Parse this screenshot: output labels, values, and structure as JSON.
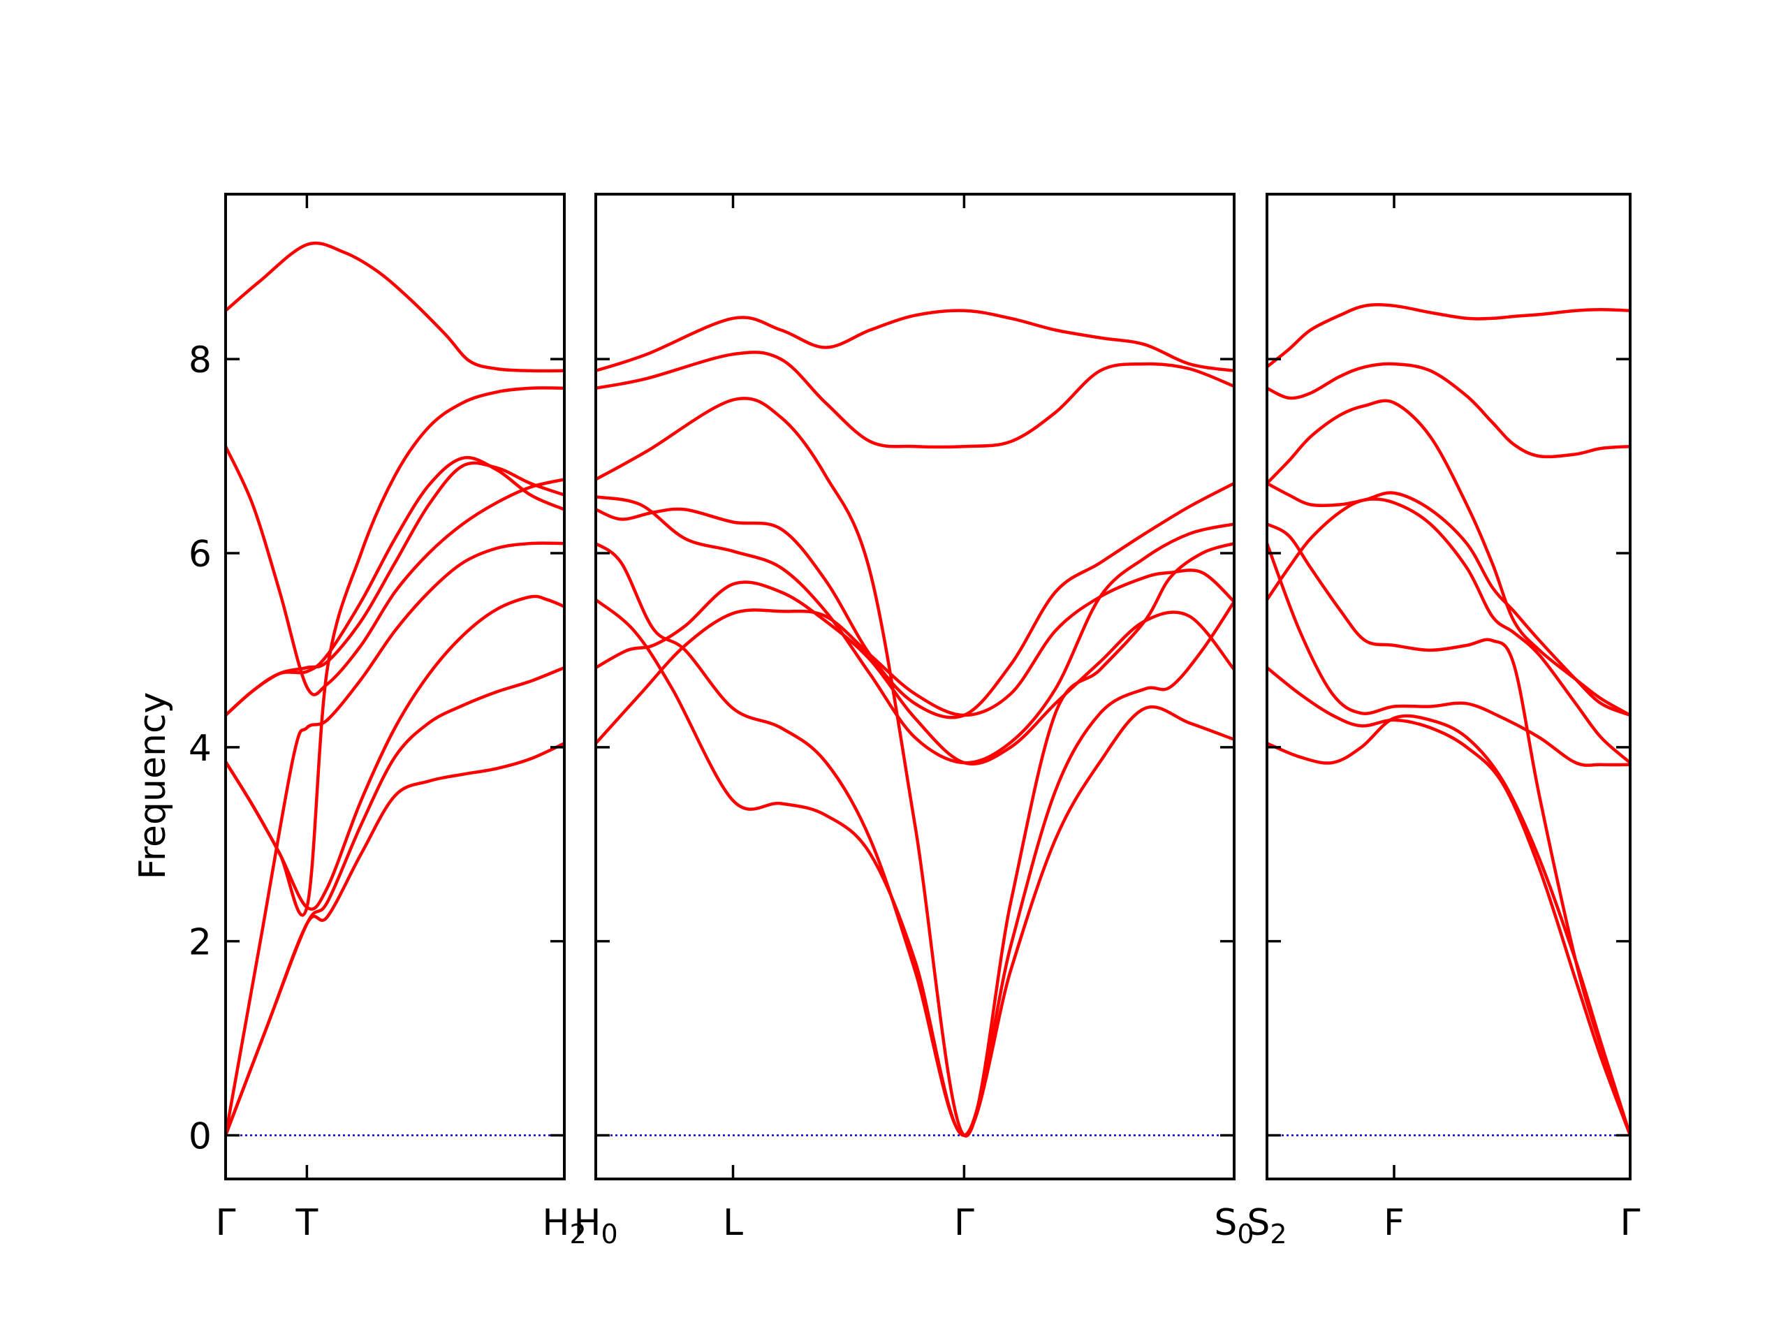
{
  "chart_data": {
    "type": "line",
    "title": "",
    "xlabel": "",
    "ylabel": "Frequency",
    "ylim": [
      -0.45,
      9.7
    ],
    "yticks": [
      0,
      2,
      4,
      6,
      8
    ],
    "grid": false,
    "legend": "none",
    "colors": {
      "bands": "#ff0000",
      "zero_line": "#0000cc",
      "frame": "#000000"
    },
    "panels": [
      {
        "id": "gamma-t-h2",
        "x_range": [
          0,
          1
        ],
        "ticks": [
          {
            "x": 0,
            "label": "Γ"
          },
          {
            "x": 0.24,
            "label": "T"
          },
          {
            "x": 1,
            "label": "H",
            "sub": "2"
          }
        ],
        "series": [
          {
            "x": [
              0,
              0.12,
              0.24,
              0.3,
              0.4,
              0.5,
              0.6,
              0.7,
              0.8,
              0.9,
              1
            ],
            "y": [
              0,
              1.1,
              2.18,
              2.25,
              2.9,
              3.5,
              3.65,
              3.72,
              3.78,
              3.88,
              4.04
            ]
          },
          {
            "x": [
              0,
              0.12,
              0.24,
              0.3,
              0.4,
              0.5,
              0.6,
              0.7,
              0.8,
              0.9,
              1
            ],
            "y": [
              0,
              1.1,
              2.18,
              2.4,
              3.2,
              3.9,
              4.25,
              4.43,
              4.57,
              4.68,
              4.82
            ]
          },
          {
            "x": [
              0,
              0.08,
              0.16,
              0.24,
              0.3,
              0.4,
              0.5,
              0.6,
              0.7,
              0.8,
              0.9,
              0.95,
              1
            ],
            "y": [
              3.85,
              3.4,
              2.9,
              2.35,
              2.55,
              3.45,
              4.2,
              4.75,
              5.15,
              5.42,
              5.55,
              5.52,
              5.45
            ]
          },
          {
            "x": [
              0,
              0.1,
              0.2,
              0.24,
              0.3,
              0.4,
              0.5,
              0.6,
              0.7,
              0.8,
              0.9,
              1
            ],
            "y": [
              0,
              1.95,
              3.9,
              4.2,
              4.28,
              4.7,
              5.2,
              5.6,
              5.9,
              6.05,
              6.1,
              6.1
            ]
          },
          {
            "x": [
              0,
              0.08,
              0.16,
              0.24,
              0.3,
              0.4,
              0.5,
              0.6,
              0.7,
              0.8,
              0.9,
              1
            ],
            "y": [
              7.1,
              6.5,
              5.6,
              4.62,
              4.65,
              5.05,
              5.6,
              6.0,
              6.3,
              6.52,
              6.68,
              6.76
            ]
          },
          {
            "x": [
              0,
              0.08,
              0.16,
              0.24,
              0.3,
              0.4,
              0.5,
              0.6,
              0.7,
              0.8,
              0.9,
              1
            ],
            "y": [
              4.33,
              4.58,
              4.76,
              4.82,
              4.88,
              5.3,
              5.9,
              6.5,
              6.9,
              6.88,
              6.72,
              6.6
            ]
          },
          {
            "x": [
              0,
              0.08,
              0.16,
              0.24,
              0.3,
              0.4,
              0.5,
              0.6,
              0.7,
              0.8,
              0.9,
              1
            ],
            "y": [
              4.33,
              4.58,
              4.76,
              4.78,
              4.95,
              5.5,
              6.15,
              6.7,
              6.98,
              6.86,
              6.6,
              6.45
            ]
          },
          {
            "x": [
              0,
              0.08,
              0.16,
              0.24,
              0.3,
              0.4,
              0.5,
              0.6,
              0.7,
              0.8,
              0.9,
              1
            ],
            "y": [
              3.85,
              3.4,
              2.9,
              2.35,
              4.8,
              6.0,
              6.8,
              7.3,
              7.55,
              7.66,
              7.7,
              7.7
            ]
          },
          {
            "x": [
              0,
              0.1,
              0.24,
              0.35,
              0.45,
              0.55,
              0.65,
              0.72,
              0.8,
              0.9,
              1
            ],
            "y": [
              8.5,
              8.8,
              9.18,
              9.1,
              8.9,
              8.6,
              8.25,
              7.98,
              7.9,
              7.88,
              7.88
            ]
          }
        ]
      },
      {
        "id": "h0-l-gamma-s0",
        "x_range": [
          0,
          1
        ],
        "ticks": [
          {
            "x": 0,
            "label": "H",
            "sub": "0"
          },
          {
            "x": 0.215,
            "label": "L"
          },
          {
            "x": 0.577,
            "label": "Γ"
          },
          {
            "x": 1,
            "label": "S",
            "sub": "0"
          }
        ],
        "series": [
          {
            "x": [
              0,
              0.07,
              0.14,
              0.215,
              0.29,
              0.36,
              0.43,
              0.5,
              0.577,
              0.65,
              0.72,
              0.79,
              0.86,
              0.9,
              0.95,
              1
            ],
            "y": [
              4.04,
              4.55,
              5.05,
              5.38,
              5.4,
              5.35,
              4.95,
              4.55,
              4.33,
              4.55,
              5.2,
              5.55,
              5.75,
              5.8,
              5.8,
              5.5
            ]
          },
          {
            "x": [
              0,
              0.05,
              0.09,
              0.14,
              0.215,
              0.29,
              0.36,
              0.43,
              0.5,
              0.577,
              0.65,
              0.72,
              0.79,
              0.86,
              0.93,
              1
            ],
            "y": [
              4.82,
              5.0,
              5.05,
              5.25,
              5.68,
              5.6,
              5.3,
              4.9,
              4.3,
              3.84,
              4.0,
              4.45,
              4.88,
              5.3,
              5.35,
              4.8
            ]
          },
          {
            "x": [
              0,
              0.07,
              0.14,
              0.215,
              0.29,
              0.36,
              0.43,
              0.5,
              0.577,
              0.65,
              0.72,
              0.79,
              0.86,
              0.93,
              1
            ],
            "y": [
              6.58,
              6.5,
              6.15,
              6.02,
              5.85,
              5.4,
              4.75,
              4.1,
              3.84,
              4.05,
              4.6,
              5.55,
              5.95,
              6.2,
              6.3
            ]
          },
          {
            "x": [
              0,
              0.04,
              0.09,
              0.14,
              0.215,
              0.29,
              0.36,
              0.43,
              0.5,
              0.577,
              0.65,
              0.72,
              0.79,
              0.86,
              0.93,
              1
            ],
            "y": [
              6.45,
              6.35,
              6.42,
              6.45,
              6.32,
              6.25,
              5.72,
              4.95,
              4.45,
              4.33,
              4.85,
              5.6,
              5.9,
              6.2,
              6.48,
              6.72
            ]
          },
          {
            "x": [
              0,
              0.04,
              0.09,
              0.14,
              0.215,
              0.29,
              0.36,
              0.43,
              0.5,
              0.577,
              0.65,
              0.72,
              0.79,
              0.86,
              0.93,
              1
            ],
            "y": [
              6.1,
              5.9,
              5.22,
              5.0,
              4.4,
              4.2,
              3.85,
              3.05,
              1.7,
              0,
              1.7,
              3.05,
              3.85,
              4.4,
              4.25,
              4.08
            ]
          },
          {
            "x": [
              0,
              0.06,
              0.12,
              0.215,
              0.29,
              0.36,
              0.43,
              0.5,
              0.577,
              0.65,
              0.72,
              0.79,
              0.86,
              0.9,
              0.95,
              1
            ],
            "y": [
              5.52,
              5.2,
              4.6,
              3.45,
              3.42,
              3.3,
              2.9,
              1.8,
              0,
              1.95,
              3.55,
              4.35,
              4.6,
              4.62,
              5.0,
              5.5
            ]
          },
          {
            "x": [
              0,
              0.08,
              0.215,
              0.29,
              0.36,
              0.43,
              0.5,
              0.577,
              0.65,
              0.72,
              0.79,
              0.86,
              0.9,
              0.95,
              1
            ],
            "y": [
              6.76,
              7.05,
              7.58,
              7.4,
              6.8,
              5.8,
              3.2,
              0,
              2.4,
              4.35,
              4.8,
              5.3,
              5.75,
              6.0,
              6.1
            ]
          },
          {
            "x": [
              0,
              0.08,
              0.215,
              0.29,
              0.36,
              0.43,
              0.5,
              0.577,
              0.65,
              0.72,
              0.79,
              0.86,
              0.93,
              1
            ],
            "y": [
              7.7,
              7.8,
              8.05,
              8.0,
              7.55,
              7.15,
              7.1,
              7.1,
              7.15,
              7.45,
              7.88,
              7.95,
              7.9,
              7.72
            ]
          },
          {
            "x": [
              0,
              0.08,
              0.215,
              0.29,
              0.36,
              0.43,
              0.5,
              0.577,
              0.65,
              0.72,
              0.79,
              0.86,
              0.93,
              1
            ],
            "y": [
              7.88,
              8.05,
              8.42,
              8.3,
              8.12,
              8.3,
              8.45,
              8.5,
              8.42,
              8.3,
              8.22,
              8.15,
              7.95,
              7.88
            ]
          }
        ]
      },
      {
        "id": "s2-f-gamma",
        "x_range": [
          0,
          1
        ],
        "ticks": [
          {
            "x": 0,
            "label": "S",
            "sub": "2"
          },
          {
            "x": 0.35,
            "label": "F"
          },
          {
            "x": 1,
            "label": "Γ"
          }
        ],
        "series": [
          {
            "x": [
              0,
              0.09,
              0.18,
              0.26,
              0.35,
              0.45,
              0.55,
              0.65,
              0.75,
              0.85,
              0.92,
              1
            ],
            "y": [
              4.04,
              3.9,
              3.84,
              4.0,
              4.3,
              4.28,
              4.1,
              3.65,
              2.85,
              1.8,
              0.95,
              0
            ]
          },
          {
            "x": [
              0,
              0.09,
              0.18,
              0.26,
              0.35,
              0.45,
              0.55,
              0.65,
              0.75,
              0.85,
              0.92,
              1
            ],
            "y": [
              4.82,
              4.55,
              4.33,
              4.22,
              4.28,
              4.2,
              4.0,
              3.62,
              2.75,
              1.6,
              0.8,
              0
            ]
          },
          {
            "x": [
              0,
              0.09,
              0.18,
              0.26,
              0.35,
              0.45,
              0.55,
              0.65,
              0.75,
              0.85,
              0.92,
              1
            ],
            "y": [
              6.1,
              5.2,
              4.55,
              4.35,
              4.42,
              4.42,
              4.45,
              4.3,
              4.1,
              3.84,
              3.82,
              3.82
            ]
          },
          {
            "x": [
              0,
              0.06,
              0.12,
              0.2,
              0.27,
              0.35,
              0.45,
              0.55,
              0.62,
              0.68,
              0.75,
              0.85,
              0.92,
              1
            ],
            "y": [
              6.3,
              6.18,
              5.85,
              5.42,
              5.1,
              5.05,
              5.0,
              5.05,
              5.1,
              4.85,
              3.5,
              1.8,
              0.9,
              0
            ]
          },
          {
            "x": [
              0,
              0.06,
              0.12,
              0.2,
              0.27,
              0.35,
              0.45,
              0.55,
              0.62,
              0.68,
              0.75,
              0.85,
              0.92,
              1
            ],
            "y": [
              5.52,
              5.85,
              6.15,
              6.42,
              6.55,
              6.52,
              6.3,
              5.85,
              5.35,
              5.18,
              4.95,
              4.45,
              4.1,
              3.84
            ]
          },
          {
            "x": [
              0,
              0.06,
              0.12,
              0.2,
              0.27,
              0.35,
              0.45,
              0.55,
              0.62,
              0.68,
              0.75,
              0.85,
              0.92,
              1
            ],
            "y": [
              6.72,
              6.6,
              6.5,
              6.5,
              6.55,
              6.62,
              6.45,
              6.1,
              5.65,
              5.4,
              5.1,
              4.7,
              4.45,
              4.33
            ]
          },
          {
            "x": [
              0,
              0.06,
              0.12,
              0.2,
              0.27,
              0.35,
              0.45,
              0.55,
              0.62,
              0.68,
              0.75,
              0.85,
              0.92,
              1
            ],
            "y": [
              6.72,
              6.95,
              7.2,
              7.42,
              7.52,
              7.55,
              7.2,
              6.5,
              5.9,
              5.3,
              5.0,
              4.7,
              4.5,
              4.33
            ]
          },
          {
            "x": [
              0,
              0.06,
              0.12,
              0.2,
              0.27,
              0.35,
              0.45,
              0.55,
              0.62,
              0.68,
              0.75,
              0.85,
              0.92,
              1
            ],
            "y": [
              7.7,
              7.6,
              7.65,
              7.82,
              7.92,
              7.95,
              7.88,
              7.62,
              7.35,
              7.12,
              7.0,
              7.02,
              7.08,
              7.1
            ]
          },
          {
            "x": [
              0,
              0.06,
              0.12,
              0.2,
              0.27,
              0.35,
              0.45,
              0.55,
              0.62,
              0.68,
              0.75,
              0.85,
              0.92,
              1
            ],
            "y": [
              7.92,
              8.1,
              8.3,
              8.45,
              8.55,
              8.55,
              8.48,
              8.42,
              8.42,
              8.44,
              8.46,
              8.5,
              8.51,
              8.5
            ]
          }
        ]
      }
    ]
  }
}
